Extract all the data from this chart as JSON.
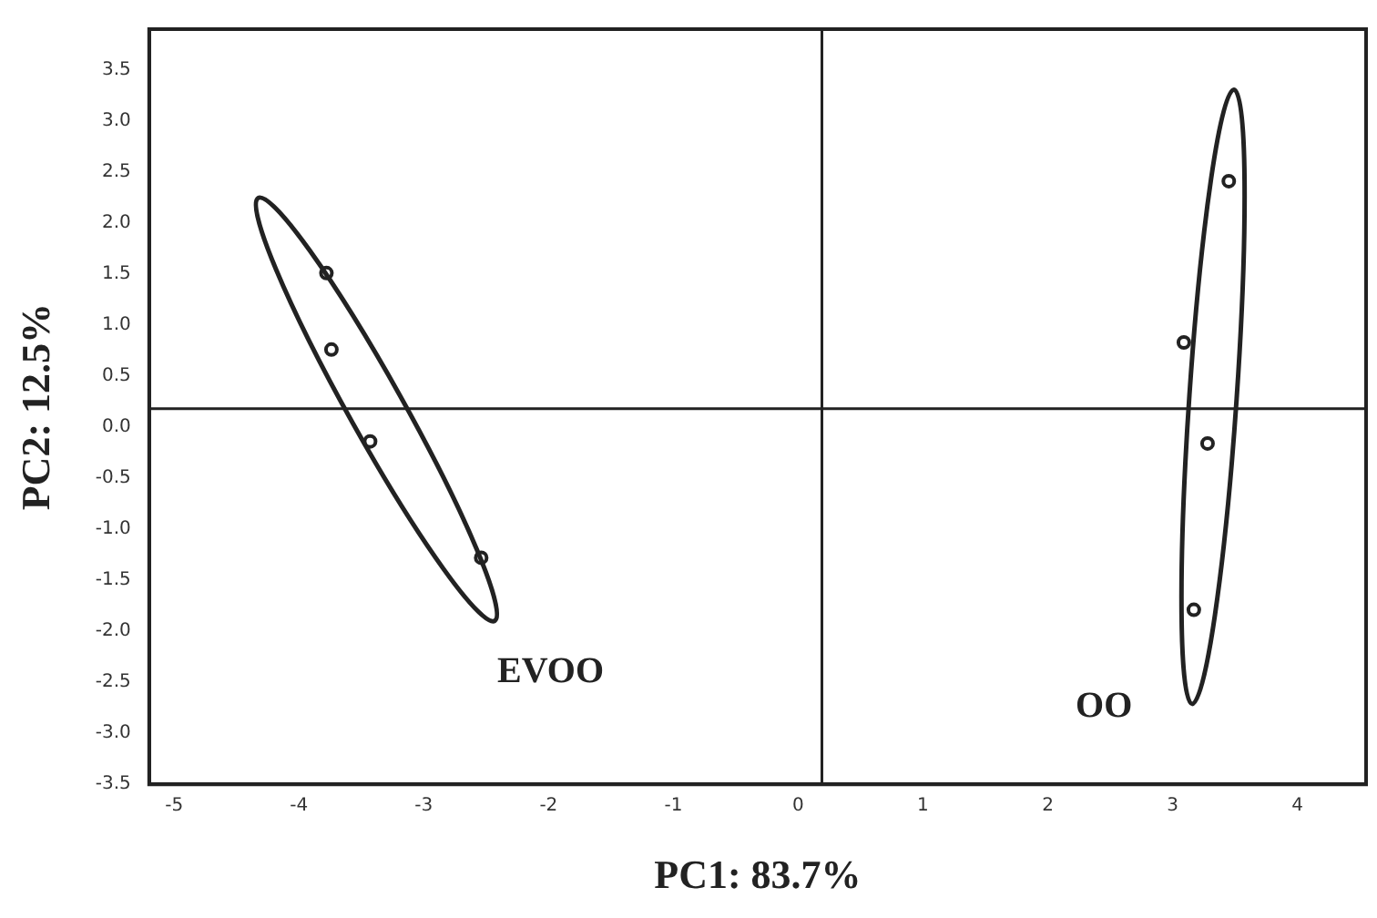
{
  "chart_data": {
    "type": "scatter",
    "xlabel": "PC1: 83.7%",
    "ylabel": "PC2: 12.5%",
    "xlim": [
      -5.2,
      4.55
    ],
    "ylim": [
      -3.5,
      3.9
    ],
    "xticks": [
      -5,
      -4,
      -3,
      -2,
      -1,
      0,
      1,
      2,
      3,
      4
    ],
    "yticks": [
      {
        "value": 3.5,
        "label": "3.5"
      },
      {
        "value": 3,
        "label": "3.0"
      },
      {
        "value": 2.5,
        "label": "2.5"
      },
      {
        "value": 2,
        "label": "2.0"
      },
      {
        "value": 1.5,
        "label": "1.5"
      },
      {
        "value": 1,
        "label": "1.0"
      },
      {
        "value": 0.5,
        "label": "0.5"
      },
      {
        "value": 0,
        "label": "0.0"
      },
      {
        "value": -0.5,
        "label": "-0.5"
      },
      {
        "value": -1,
        "label": "-1.0"
      },
      {
        "value": -1.5,
        "label": "-1.5"
      },
      {
        "value": -2,
        "label": "-2.0"
      },
      {
        "value": -2.5,
        "label": "-2.5"
      },
      {
        "value": -3,
        "label": "-3.0"
      },
      {
        "value": -3.5,
        "label": "-3.5"
      }
    ],
    "grid": false,
    "legend": false,
    "marker": "circle",
    "series": [
      {
        "color": "#222222",
        "x": [
          -3.78,
          -3.74,
          -3.43,
          -2.54
        ],
        "values": [
          1.51,
          0.76,
          -0.14,
          -1.28
        ]
      },
      {
        "color": "#222222",
        "x": [
          3.45,
          3.09,
          3.28,
          3.17
        ],
        "values": [
          2.41,
          0.83,
          -0.16,
          -1.79
        ]
      }
    ],
    "ref_lines": [
      {
        "axis": "x",
        "value": 0.19,
        "color": "#222222"
      },
      {
        "axis": "y",
        "value": 0.18,
        "color": "#222222"
      }
    ],
    "annotations": [
      "EVOO",
      "OO"
    ]
  }
}
